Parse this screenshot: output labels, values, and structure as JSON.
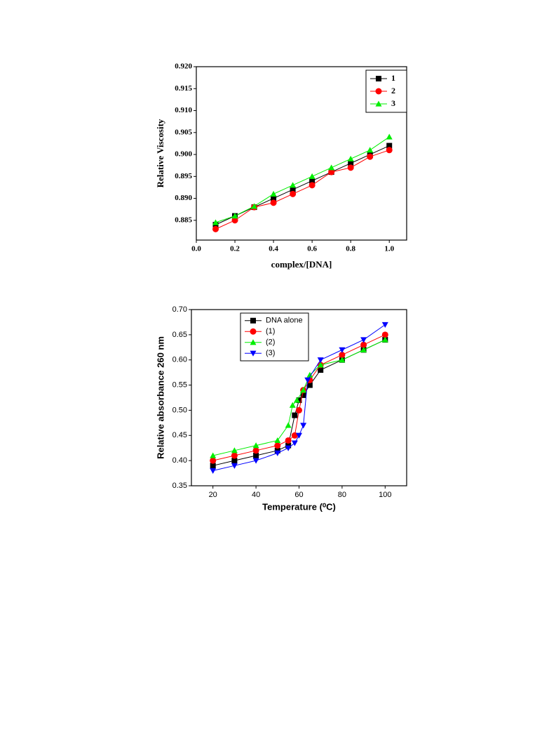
{
  "chart_data": [
    {
      "type": "line",
      "xlabel": "complex/[DNA]",
      "ylabel": "Relative Viscosity",
      "xlim": [
        0,
        1.09
      ],
      "ylim": [
        0.8805,
        0.92
      ],
      "xticks": [
        {
          "value": 0,
          "label": "0.0"
        },
        0.2,
        0.4,
        0.6,
        0.8,
        {
          "value": 1,
          "label": "1.0"
        }
      ],
      "yticks": [
        0.885,
        {
          "value": 0.89,
          "label": "0.890"
        },
        0.895,
        {
          "value": 0.9,
          "label": "0.900"
        },
        0.905,
        {
          "value": 0.91,
          "label": "0.910"
        },
        0.915,
        {
          "value": 0.92,
          "label": "0.920"
        }
      ],
      "legend": "upper right",
      "series": [
        {
          "name": "1",
          "color": "#000000",
          "marker": "square",
          "x": [
            0.1,
            0.2,
            0.3,
            0.4,
            0.5,
            0.6,
            0.7,
            0.8,
            0.9,
            1.0
          ],
          "values": [
            0.884,
            0.886,
            0.888,
            0.89,
            0.892,
            0.894,
            0.896,
            0.898,
            0.9,
            0.902
          ]
        },
        {
          "name": "2",
          "color": "#ff0000",
          "marker": "circle",
          "x": [
            0.1,
            0.2,
            0.3,
            0.4,
            0.5,
            0.6,
            0.7,
            0.8,
            0.9,
            1.0
          ],
          "values": [
            0.883,
            0.885,
            0.888,
            0.889,
            0.891,
            0.893,
            0.896,
            0.897,
            0.8995,
            0.901
          ]
        },
        {
          "name": "3",
          "color": "#00ee00",
          "marker": "triangle-up",
          "x": [
            0.1,
            0.2,
            0.3,
            0.4,
            0.5,
            0.6,
            0.7,
            0.8,
            0.9,
            1.0
          ],
          "values": [
            0.8845,
            0.886,
            0.8882,
            0.891,
            0.893,
            0.895,
            0.897,
            0.899,
            0.901,
            0.904
          ]
        }
      ]
    },
    {
      "type": "line",
      "xlabel": "Temperature (⁰C)",
      "ylabel": "Relative absorbance 260 nm",
      "xlim": [
        10,
        110
      ],
      "ylim": [
        0.35,
        0.7
      ],
      "xticks": [
        20,
        40,
        60,
        80,
        100
      ],
      "yticks": [
        0.35,
        {
          "value": 0.4,
          "label": "0.40"
        },
        0.45,
        {
          "value": 0.5,
          "label": "0.50"
        },
        0.55,
        {
          "value": 0.6,
          "label": "0.60"
        },
        0.65,
        {
          "value": 0.7,
          "label": "0.70"
        }
      ],
      "legend": "upper left",
      "series": [
        {
          "name": "DNA alone",
          "color": "#000000",
          "marker": "square",
          "x": [
            20,
            30,
            40,
            50,
            55,
            58,
            60,
            62,
            65,
            70,
            80,
            90,
            100
          ],
          "values": [
            0.39,
            0.4,
            0.41,
            0.42,
            0.43,
            0.49,
            0.52,
            0.53,
            0.55,
            0.58,
            0.6,
            0.62,
            0.64
          ]
        },
        {
          "name": "(1)",
          "color": "#ff0000",
          "marker": "circle",
          "x": [
            20,
            30,
            40,
            50,
            55,
            58,
            60,
            62,
            65,
            70,
            80,
            90,
            100
          ],
          "values": [
            0.4,
            0.41,
            0.42,
            0.43,
            0.44,
            0.45,
            0.5,
            0.54,
            0.56,
            0.59,
            0.61,
            0.63,
            0.65
          ]
        },
        {
          "name": "(2)",
          "color": "#00ee00",
          "marker": "triangle-up",
          "x": [
            20,
            30,
            40,
            50,
            55,
            57,
            59,
            62,
            65,
            70,
            80,
            90,
            100
          ],
          "values": [
            0.41,
            0.42,
            0.43,
            0.44,
            0.47,
            0.51,
            0.52,
            0.54,
            0.57,
            0.59,
            0.6,
            0.62,
            0.64
          ]
        },
        {
          "name": "(3)",
          "color": "#0000ff",
          "marker": "triangle-down",
          "x": [
            20,
            30,
            40,
            50,
            55,
            58,
            60,
            62,
            64,
            70,
            80,
            90,
            100
          ],
          "values": [
            0.38,
            0.39,
            0.4,
            0.415,
            0.425,
            0.435,
            0.45,
            0.47,
            0.56,
            0.6,
            0.62,
            0.64,
            0.67
          ]
        }
      ]
    }
  ]
}
